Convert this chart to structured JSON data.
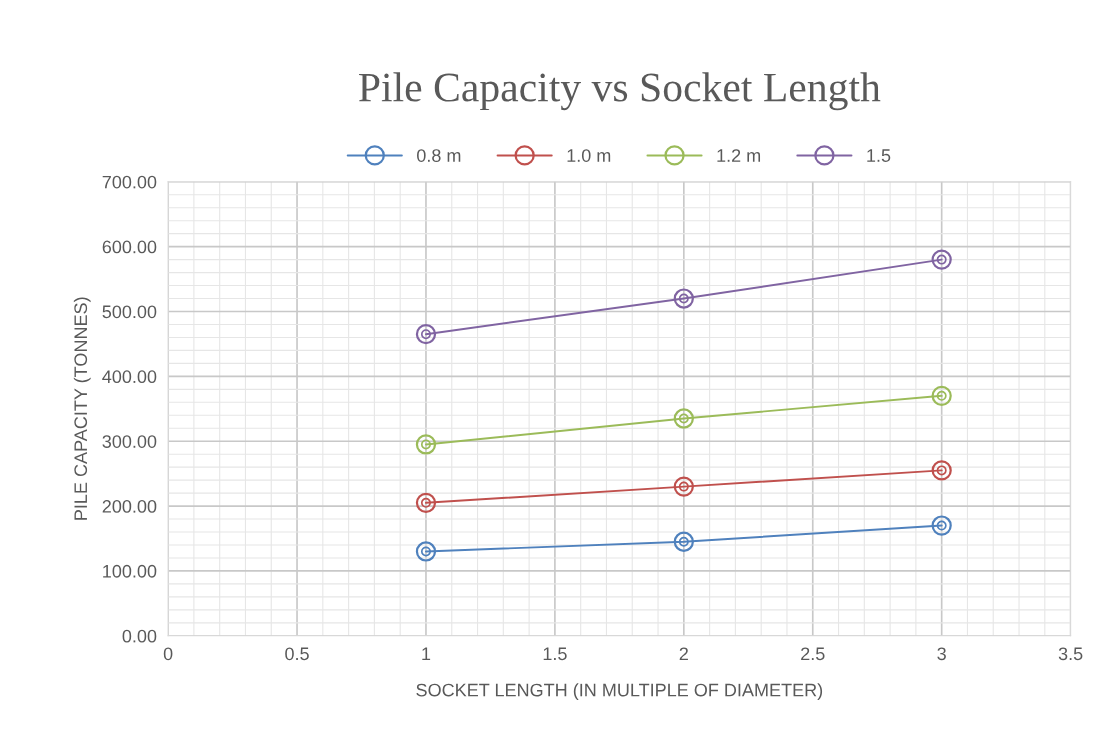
{
  "chart_data": {
    "type": "line",
    "title": "Pile Capacity vs Socket Length",
    "xlabel": "SOCKET LENGTH (IN MULTIPLE OF DIAMETER)",
    "ylabel": "PILE CAPACITY (TONNES)",
    "x": [
      1,
      2,
      3
    ],
    "series": [
      {
        "name": "0.8 m",
        "color": "#4f81bd",
        "values": [
          130,
          145,
          170
        ]
      },
      {
        "name": "1.0 m",
        "color": "#c0504d",
        "values": [
          205,
          230,
          255
        ]
      },
      {
        "name": "1.2 m",
        "color": "#9bbb59",
        "values": [
          295,
          335,
          370
        ]
      },
      {
        "name": "1.5",
        "color": "#8064a2",
        "values": [
          465,
          520,
          580
        ]
      }
    ],
    "xlim": [
      0,
      3.5
    ],
    "xticks": [
      0,
      0.5,
      1,
      1.5,
      2,
      2.5,
      3,
      3.5
    ],
    "ylim": [
      0,
      700
    ],
    "yticks": [
      {
        "value": 0,
        "label": "0.00"
      },
      {
        "value": 100,
        "label": "100.00"
      },
      {
        "value": 200,
        "label": "200.00"
      },
      {
        "value": 300,
        "label": "300.00"
      },
      {
        "value": 400,
        "label": "400.00"
      },
      {
        "value": 500,
        "label": "500.00"
      },
      {
        "value": 600,
        "label": "600.00"
      },
      {
        "value": 700,
        "label": "700.00"
      }
    ],
    "grid": true,
    "legend": "top",
    "marker": "circle",
    "line_style": "solid"
  }
}
